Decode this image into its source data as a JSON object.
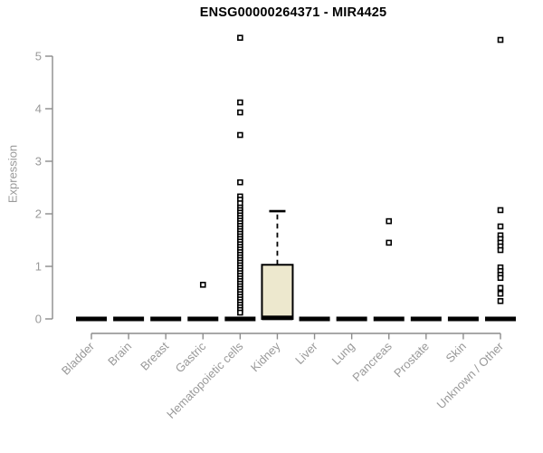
{
  "chart_data": {
    "type": "boxplot",
    "title": "ENSG00000264371 - MIR4425",
    "ylabel": "Expression",
    "xlabel": "",
    "ylim": [
      0,
      5.5
    ],
    "yticks": [
      0,
      1,
      2,
      3,
      4,
      5
    ],
    "grid": "off",
    "legend": "none",
    "categories": [
      "Bladder",
      "Brain",
      "Breast",
      "Gastric",
      "Hematopoietic cells",
      "Kidney",
      "Liver",
      "Lung",
      "Pancreas",
      "Prostate",
      "Skin",
      "Unknown / Other"
    ],
    "boxes": [
      {
        "category": "Bladder",
        "q1": 0,
        "median": 0,
        "q3": 0,
        "whisker_low": 0,
        "whisker_high": 0,
        "outliers": []
      },
      {
        "category": "Brain",
        "q1": 0,
        "median": 0,
        "q3": 0,
        "whisker_low": 0,
        "whisker_high": 0,
        "outliers": []
      },
      {
        "category": "Breast",
        "q1": 0,
        "median": 0,
        "q3": 0,
        "whisker_low": 0,
        "whisker_high": 0,
        "outliers": []
      },
      {
        "category": "Gastric",
        "q1": 0,
        "median": 0,
        "q3": 0,
        "whisker_low": 0,
        "whisker_high": 0,
        "outliers": [
          0.65
        ]
      },
      {
        "category": "Hematopoietic cells",
        "q1": 0,
        "median": 0,
        "q3": 0,
        "whisker_low": 0,
        "whisker_high": 0,
        "outliers": [
          5.35,
          4.12,
          3.93,
          3.5,
          2.6,
          2.33,
          2.27,
          2.2,
          2.12,
          2.07,
          2.02,
          1.97,
          1.92,
          1.87,
          1.82,
          1.77,
          1.72,
          1.67,
          1.62,
          1.57,
          1.52,
          1.47,
          1.42,
          1.37,
          1.32,
          1.27,
          1.22,
          1.17,
          1.12,
          1.07,
          1.02,
          0.97,
          0.92,
          0.87,
          0.82,
          0.77,
          0.72,
          0.67,
          0.62,
          0.57,
          0.52,
          0.47,
          0.42,
          0.37,
          0.32,
          0.27,
          0.22,
          0.17,
          0.12
        ]
      },
      {
        "category": "Kidney",
        "q1": 0,
        "median": 0.02,
        "q3": 1.03,
        "whisker_low": 0,
        "whisker_high": 2.05,
        "outliers": []
      },
      {
        "category": "Liver",
        "q1": 0,
        "median": 0,
        "q3": 0,
        "whisker_low": 0,
        "whisker_high": 0,
        "outliers": []
      },
      {
        "category": "Lung",
        "q1": 0,
        "median": 0,
        "q3": 0,
        "whisker_low": 0,
        "whisker_high": 0,
        "outliers": []
      },
      {
        "category": "Pancreas",
        "q1": 0,
        "median": 0,
        "q3": 0,
        "whisker_low": 0,
        "whisker_high": 0,
        "outliers": [
          1.86,
          1.45
        ]
      },
      {
        "category": "Prostate",
        "q1": 0,
        "median": 0,
        "q3": 0,
        "whisker_low": 0,
        "whisker_high": 0,
        "outliers": []
      },
      {
        "category": "Skin",
        "q1": 0,
        "median": 0,
        "q3": 0,
        "whisker_low": 0,
        "whisker_high": 0,
        "outliers": []
      },
      {
        "category": "Unknown / Other",
        "q1": 0,
        "median": 0,
        "q3": 0,
        "whisker_low": 0,
        "whisker_high": 0,
        "outliers": [
          5.31,
          2.07,
          1.76,
          1.59,
          1.52,
          1.45,
          1.38,
          1.31,
          0.98,
          0.91,
          0.84,
          0.78,
          0.59,
          0.48,
          0.34
        ]
      }
    ]
  },
  "colors": {
    "axis": "#8c8c8c",
    "tick_text": "#999999",
    "box_fill": "#ede8ce",
    "box_stroke": "#000000",
    "median": "#000000",
    "outlier_stroke": "#000000",
    "outlier_fill": "#ffffff",
    "background": "#ffffff",
    "title": "#000000"
  }
}
